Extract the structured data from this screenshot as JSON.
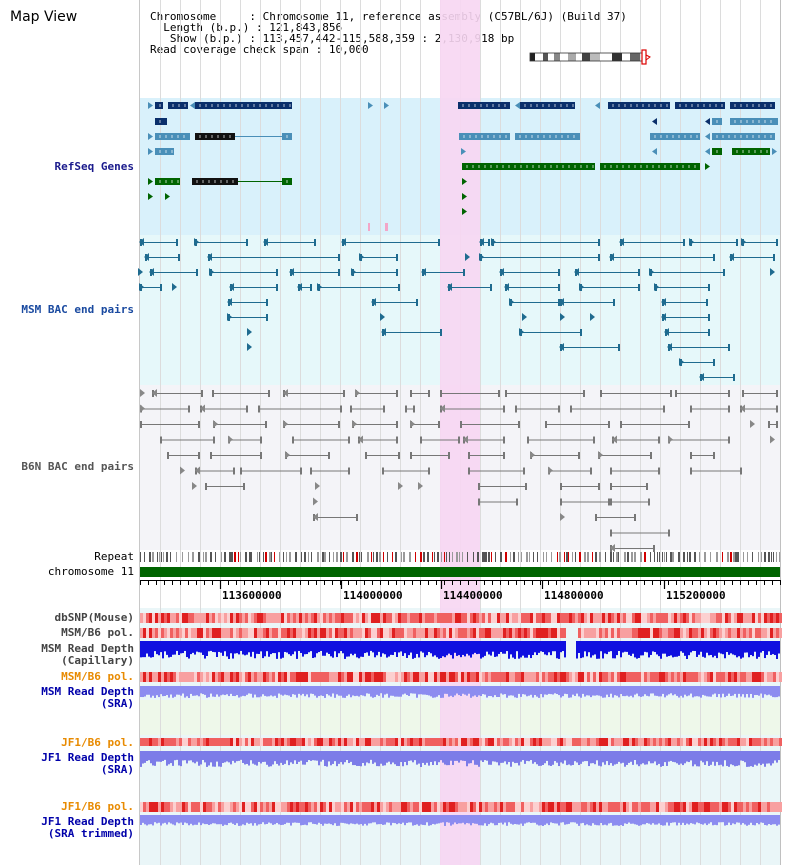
{
  "page": {
    "title": "Map View"
  },
  "info": {
    "chromosome_label": "Chromosome",
    "chromosome_value": "Chromosome 11, reference assembly (C57BL/6J) (Build 37)",
    "length_label": "Length (b.p.)",
    "length_value": "121,843,856",
    "show_label": "Show (b.p.)",
    "show_value": "113,457,442-115,588,359 : 2,130,918 bp",
    "coverage_label": "Read coverage check span",
    "coverage_value": "10,000"
  },
  "tracks": {
    "refseq": "RefSeq Genes",
    "msm_bac": "MSM BAC end pairs",
    "b6n_bac": "B6N BAC end pairs",
    "repeat": "Repeat",
    "chromosome": "chromosome 11",
    "dbsnp": "dbSNP(Mouse)",
    "msm_b6_pol_1": "MSM/B6 pol.",
    "msm_read_depth_cap": "MSM Read Depth\n(Capillary)",
    "msm_b6_pol_2": "MSM/B6 pol.",
    "msm_read_depth_sra": "MSM Read Depth\n(SRA)",
    "jf1_b6_pol_1": "JF1/B6 pol.",
    "jf1_read_depth_sra": "JF1 Read Depth\n(SRA)",
    "jf1_b6_pol_2": "JF1/B6 pol.",
    "jf1_read_depth_trim": "JF1 Read Depth\n(SRA trimmed)"
  },
  "ruler": {
    "ticks": [
      "113600000",
      "114000000",
      "114400000",
      "114800000",
      "115200000"
    ]
  },
  "colors": {
    "refseq_label": "#1a1a8c",
    "msm_label": "#1a4aa0",
    "b6n_label": "#555555",
    "orange_label": "#e88a00",
    "blue_label": "#0000aa",
    "highlight": "#f7d6f2",
    "refseq_bg": "#d9f1fb",
    "bac_bg": "#e6f8fa",
    "chromosome_bar": "#006400",
    "gene_dark": "#0a2f6b",
    "gene_mid": "#4a8fb8",
    "gene_green": "#006400",
    "msm_pair": "#1f6b8f",
    "b6n_pair": "#777777"
  }
}
